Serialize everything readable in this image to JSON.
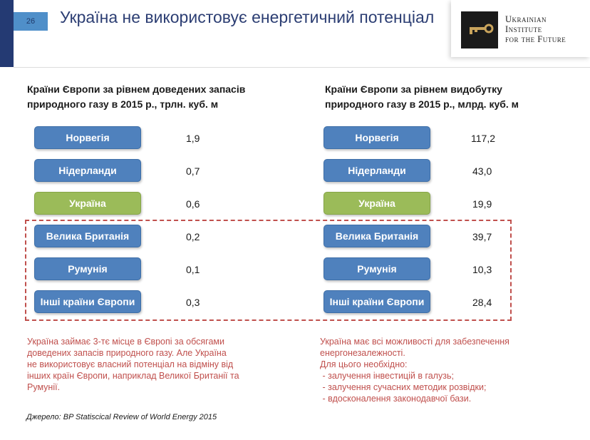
{
  "header": {
    "page_number": "26",
    "title": "Україна не використовує енергетичний потенціал",
    "logo": {
      "line1": "Ukrainian",
      "line2": "Institute",
      "line3": "for the Future",
      "mark_icon": "key-icon"
    }
  },
  "colors": {
    "navy": "#243a73",
    "blue": "#4f81bd",
    "green": "#9bbb59",
    "red": "#c0504d"
  },
  "left": {
    "title_line1": "Країни Європи за рівнем доведених запасів",
    "title_line2": "природного газу в 2015 р., трлн. куб. м",
    "rows": [
      {
        "country": "Норвегія",
        "value": "1,9"
      },
      {
        "country": "Нідерланди",
        "value": "0,7"
      },
      {
        "country": "Україна",
        "value": "0,6"
      },
      {
        "country": "Велика Британія",
        "value": "0,2"
      },
      {
        "country": "Румунія",
        "value": "0,1"
      },
      {
        "country": "Інші країни Європи",
        "value": "0,3"
      }
    ],
    "note": [
      "Україна займає 3-тє місце в Європі за обсягами",
      "доведених запасів природного газу. Але Україна",
      "не використовує власний потенціал на відміну від",
      "інших країн Європи, наприклад Великої Британії та",
      "Румунії."
    ]
  },
  "right": {
    "title_line1": "Країни Європи за рівнем видобутку",
    "title_line2": "природного газу в 2015 р., млрд. куб. м",
    "rows": [
      {
        "country": "Норвегія",
        "value": "117,2"
      },
      {
        "country": "Нідерланди",
        "value": "43,0"
      },
      {
        "country": "Україна",
        "value": "19,9"
      },
      {
        "country": "Велика Британія",
        "value": "39,7"
      },
      {
        "country": "Румунія",
        "value": "10,3"
      },
      {
        "country": "Інші країни Європи",
        "value": "28,4"
      }
    ],
    "note": [
      "Україна має всі можливості для забезпечення",
      "енергонезалежності.",
      "Для цього необхідно:",
      " - залучення інвестицій в галузь;",
      " - залучення сучасних методик розвідки;",
      " - вдосконалення законодавчої бази."
    ]
  },
  "source": "Джерело: BP Statiscical Review of World Energy 2015"
}
